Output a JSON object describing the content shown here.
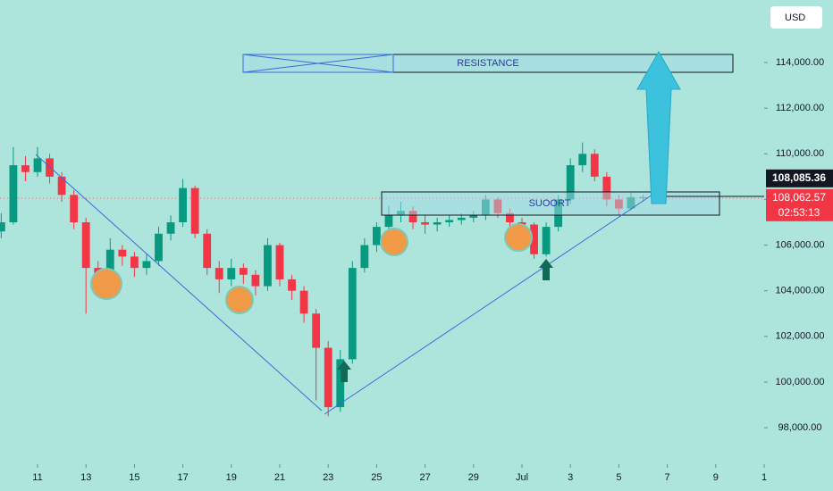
{
  "chart_data": {
    "type": "candlestick",
    "currency": "USD",
    "annotations": [
      "RESISTANCE",
      "SUOORT"
    ],
    "up_color": "#089981",
    "down_color": "#f23645",
    "xlim": [
      -1.55,
      30.0
    ],
    "xticks": [
      {
        "value": 0,
        "label": "11"
      },
      {
        "value": 2,
        "label": "13"
      },
      {
        "value": 4,
        "label": "15"
      },
      {
        "value": 6,
        "label": "17"
      },
      {
        "value": 8,
        "label": "19"
      },
      {
        "value": 10,
        "label": "21"
      },
      {
        "value": 12,
        "label": "23"
      },
      {
        "value": 14,
        "label": "25"
      },
      {
        "value": 16,
        "label": "27"
      },
      {
        "value": 18,
        "label": "29"
      },
      {
        "value": 20,
        "label": "Jul"
      },
      {
        "value": 22,
        "label": "3"
      },
      {
        "value": 24,
        "label": "5"
      },
      {
        "value": 26,
        "label": "7"
      },
      {
        "value": 28,
        "label": "9"
      },
      {
        "value": 30,
        "label": "1"
      }
    ],
    "ylim": [
      96400,
      116740
    ],
    "yticks": [
      {
        "value": 98000,
        "label": "98,000.00"
      },
      {
        "value": 100000,
        "label": "100,000.00"
      },
      {
        "value": 102000,
        "label": "102,000.00"
      },
      {
        "value": 104000,
        "label": "104,000.00"
      },
      {
        "value": 106000,
        "label": "106,000.00"
      },
      {
        "value": 108000,
        "label": "108,000.00"
      },
      {
        "value": 110000,
        "label": "110,000.00"
      },
      {
        "value": 112000,
        "label": "112,000.00"
      },
      {
        "value": 114000,
        "label": "114,000.00"
      }
    ],
    "price_labels": [
      {
        "value": 108085.36,
        "label": "108,085.36"
      },
      {
        "value": 108062.57,
        "label": "108,062.57"
      }
    ],
    "countdown": "02:53:13",
    "x": [
      -1.5,
      -1,
      -0.5,
      0,
      0.5,
      1,
      1.5,
      2,
      2.5,
      3,
      3.5,
      4,
      4.5,
      5,
      5.5,
      6,
      6.5,
      7,
      7.5,
      8,
      8.5,
      9,
      9.5,
      10,
      10.5,
      11,
      11.5,
      12,
      12.5,
      13,
      13.5,
      14,
      14.5,
      15,
      15.5,
      16,
      16.5,
      17,
      17.5,
      18,
      18.5,
      19,
      19.5,
      20,
      20.5,
      21,
      21.5,
      22,
      22.5,
      23,
      23.5,
      24,
      24.5,
      25,
      25.5
    ],
    "open": [
      106600,
      107000,
      109500,
      109200,
      109800,
      109000,
      108200,
      107000,
      105000,
      104500,
      105800,
      105500,
      105000,
      105300,
      106500,
      107000,
      108500,
      106500,
      105000,
      104500,
      105000,
      104700,
      104200,
      106000,
      104500,
      104000,
      103000,
      101500,
      98900,
      101000,
      105000,
      106000,
      106800,
      107300,
      107500,
      107000,
      106900,
      107000,
      107100,
      107200,
      107300,
      108000,
      107400,
      107000,
      106900,
      105600,
      106800,
      108000,
      109500,
      110000,
      109000,
      108000,
      107600,
      108100,
      108100
    ],
    "high": [
      107400,
      110300,
      109900,
      110300,
      110000,
      109200,
      108400,
      107200,
      105300,
      106300,
      106000,
      105700,
      105600,
      106800,
      107300,
      108900,
      108600,
      106700,
      105300,
      105400,
      105200,
      104900,
      106300,
      106100,
      104700,
      104200,
      103200,
      101800,
      101400,
      105300,
      106300,
      107000,
      107700,
      107900,
      107700,
      107300,
      107200,
      107300,
      107400,
      107500,
      108200,
      108100,
      107600,
      107200,
      107000,
      107000,
      108200,
      109800,
      110500,
      110200,
      109200,
      108200,
      108300,
      108200,
      108150
    ],
    "low": [
      106300,
      106900,
      108800,
      109000,
      108700,
      107900,
      106700,
      103000,
      104100,
      104300,
      105100,
      104600,
      104700,
      105100,
      106200,
      106800,
      106300,
      104700,
      103900,
      104200,
      104300,
      103800,
      104000,
      104200,
      103600,
      102600,
      99200,
      98500,
      98700,
      100800,
      104800,
      105700,
      106600,
      107000,
      106700,
      106500,
      106600,
      106800,
      106900,
      107000,
      107100,
      107200,
      106700,
      106500,
      105400,
      105500,
      106600,
      107800,
      109200,
      108800,
      107700,
      107300,
      107500,
      107900,
      108000
    ],
    "close": [
      107000,
      109500,
      109200,
      109800,
      109000,
      108200,
      107000,
      105000,
      104500,
      105800,
      105500,
      105000,
      105300,
      106500,
      107000,
      108500,
      106500,
      105000,
      104500,
      105000,
      104700,
      104200,
      106000,
      104500,
      104000,
      103000,
      101500,
      98900,
      101000,
      105000,
      106000,
      106800,
      107300,
      107500,
      107000,
      106900,
      107000,
      107100,
      107200,
      107300,
      108000,
      107400,
      107000,
      106900,
      105600,
      106800,
      108000,
      109500,
      110000,
      109000,
      108000,
      107600,
      108100,
      108100,
      108062.57
    ]
  }
}
